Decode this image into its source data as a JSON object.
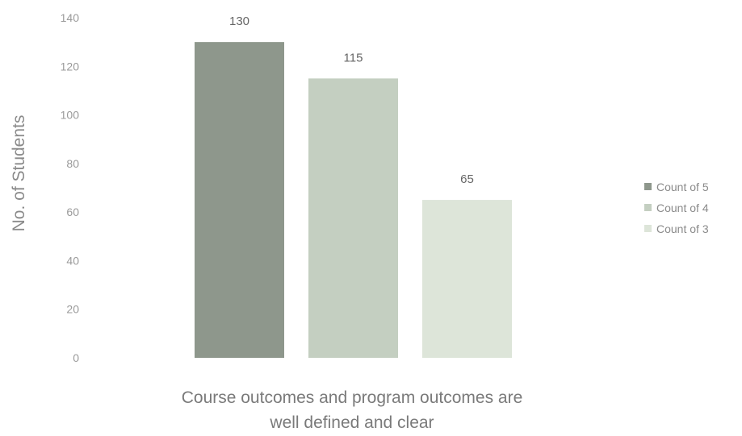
{
  "chart_data": {
    "type": "bar",
    "categories": [
      "Course outcomes and program outcomes are well defined and clear"
    ],
    "xlabel_lines": [
      "Course outcomes and program outcomes are",
      "well defined and clear"
    ],
    "ylabel": "No. of Students",
    "ylim": [
      0,
      140
    ],
    "yticks": [
      0,
      20,
      40,
      60,
      80,
      100,
      120,
      140
    ],
    "grid": false,
    "legend_position": "right",
    "series": [
      {
        "name": "Count of 5",
        "values": [
          130
        ],
        "color": "#8e978c"
      },
      {
        "name": "Count of 4",
        "values": [
          115
        ],
        "color": "#c4cfc1"
      },
      {
        "name": "Count of 3",
        "values": [
          65
        ],
        "color": "#dde5d9"
      }
    ]
  }
}
